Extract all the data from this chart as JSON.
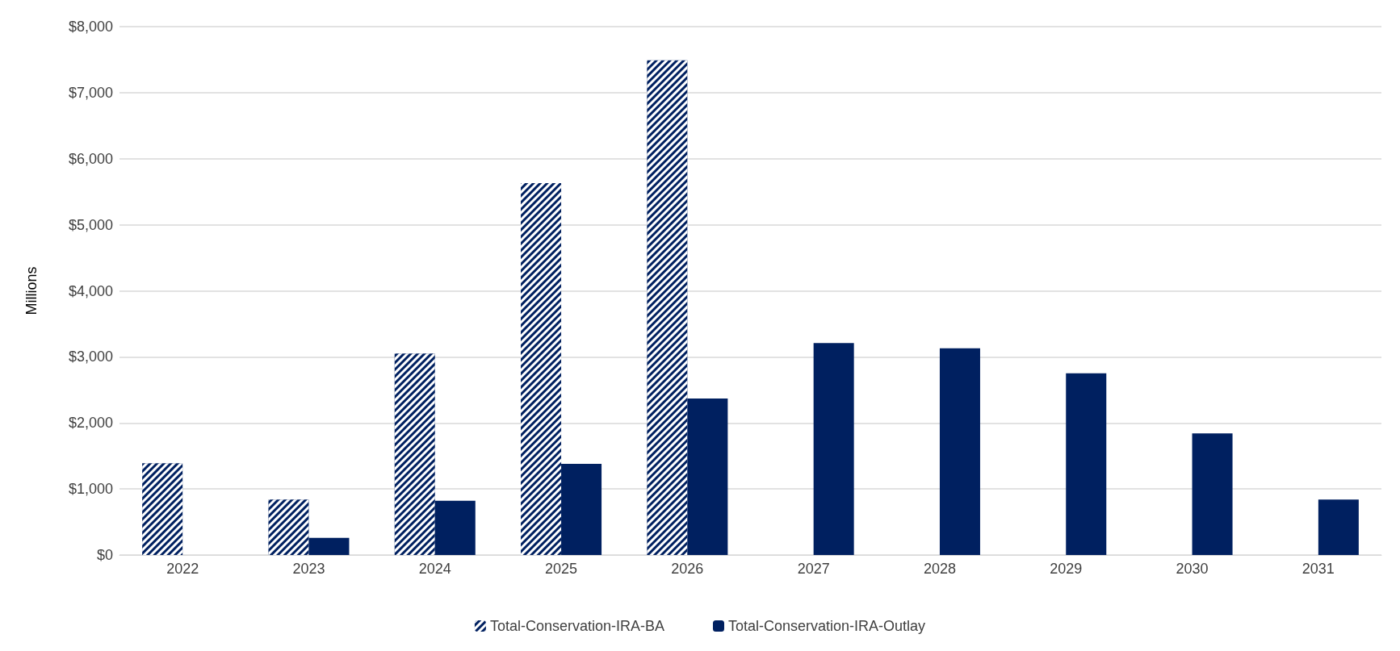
{
  "chart_data": {
    "type": "bar",
    "ylabel": "Millions",
    "categories": [
      "2022",
      "2023",
      "2024",
      "2025",
      "2026",
      "2027",
      "2028",
      "2029",
      "2030",
      "2031"
    ],
    "series": [
      {
        "name": "Total-Conservation-IRA-BA",
        "color": "#002060",
        "values": [
          1390,
          840,
          3050,
          5630,
          7490,
          null,
          null,
          null,
          null,
          null
        ]
      },
      {
        "name": "Total-Conservation-IRA-Outlay",
        "color": "#002060",
        "values": [
          null,
          260,
          820,
          1380,
          2370,
          3210,
          3130,
          2750,
          1840,
          840
        ]
      }
    ],
    "ylim": [
      0,
      8000
    ],
    "yticks": [
      {
        "value": 0,
        "label": "$0"
      },
      {
        "value": 1000,
        "label": "$1,000"
      },
      {
        "value": 2000,
        "label": "$2,000"
      },
      {
        "value": 3000,
        "label": "$3,000"
      },
      {
        "value": 4000,
        "label": "$4,000"
      },
      {
        "value": 5000,
        "label": "$5,000"
      },
      {
        "value": 6000,
        "label": "$6,000"
      },
      {
        "value": 7000,
        "label": "$7,000"
      },
      {
        "value": 8000,
        "label": "$8,000"
      }
    ],
    "grid": "y",
    "legend": "bottom"
  }
}
